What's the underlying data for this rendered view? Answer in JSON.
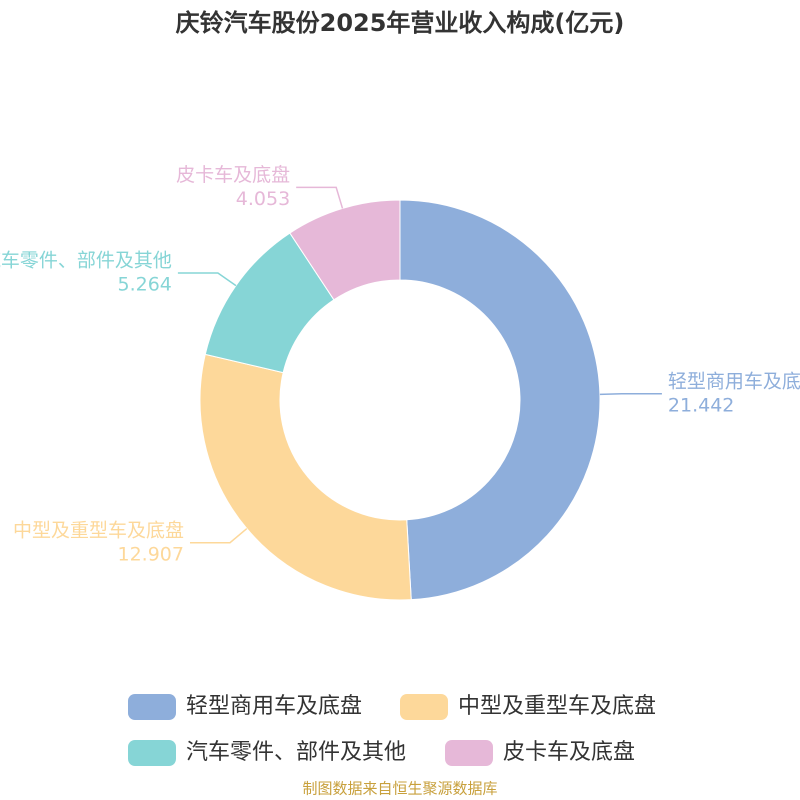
{
  "chart_data": {
    "type": "donut",
    "title": "庆铃汽车股份2025年营业收入构成(亿元)",
    "categories": [
      "轻型商用车及底盘",
      "中型及重型车及底盘",
      "汽车零件、部件及其他",
      "皮卡车及底盘"
    ],
    "values": [
      21.442,
      12.907,
      5.264,
      4.053
    ],
    "colors": [
      "#8eaedb",
      "#fdd89a",
      "#86d5d6",
      "#e6b8d8"
    ],
    "source": "制图数据来自恒生聚源数据库"
  }
}
